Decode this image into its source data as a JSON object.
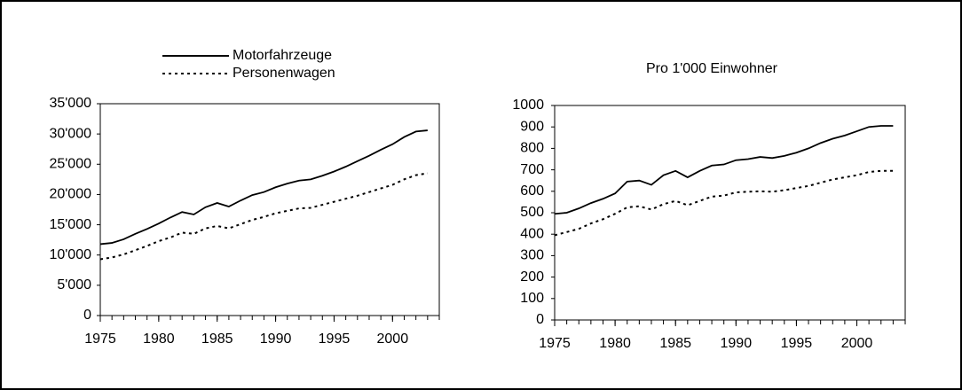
{
  "chart_data": [
    {
      "type": "line",
      "legend": true,
      "legend_position": "top",
      "x": [
        1975,
        1976,
        1977,
        1978,
        1979,
        1980,
        1981,
        1982,
        1983,
        1984,
        1985,
        1986,
        1987,
        1988,
        1989,
        1990,
        1991,
        1992,
        1993,
        1994,
        1995,
        1996,
        1997,
        1998,
        1999,
        2000,
        2001,
        2002,
        2003
      ],
      "xlim": [
        1975,
        2004
      ],
      "xticks": [
        1975,
        1980,
        1985,
        1990,
        1995,
        2000
      ],
      "ylim": [
        0,
        35000
      ],
      "yticks": [
        0,
        {
          "value": 5000,
          "label": "5'000"
        },
        {
          "value": 10000,
          "label": "10'000"
        },
        {
          "value": 15000,
          "label": "15'000"
        },
        {
          "value": 20000,
          "label": "20'000"
        },
        {
          "value": 25000,
          "label": "25'000"
        },
        {
          "value": 30000,
          "label": "30'000"
        },
        {
          "value": 35000,
          "label": "35'000"
        }
      ],
      "series": [
        {
          "name": "Motorfahrzeuge",
          "color": "#000000",
          "dash": "solid",
          "values": [
            11800,
            12000,
            12600,
            13500,
            14300,
            15200,
            16200,
            17100,
            16700,
            17900,
            18600,
            18000,
            19000,
            19900,
            20400,
            21200,
            21800,
            22300,
            22500,
            23100,
            23800,
            24600,
            25500,
            26400,
            27400,
            28300,
            29500,
            30400,
            30600
          ]
        },
        {
          "name": "Personenwagen",
          "color": "#000000",
          "dash": "dotted",
          "values": [
            9300,
            9600,
            10100,
            10800,
            11500,
            12300,
            12900,
            13700,
            13500,
            14400,
            14800,
            14400,
            15100,
            15800,
            16300,
            16900,
            17300,
            17700,
            17800,
            18300,
            18800,
            19300,
            19800,
            20400,
            21000,
            21600,
            22500,
            23200,
            23500
          ]
        }
      ]
    },
    {
      "type": "line",
      "title": "Pro 1'000 Einwohner",
      "legend": false,
      "x": [
        1975,
        1976,
        1977,
        1978,
        1979,
        1980,
        1981,
        1982,
        1983,
        1984,
        1985,
        1986,
        1987,
        1988,
        1989,
        1990,
        1991,
        1992,
        1993,
        1994,
        1995,
        1996,
        1997,
        1998,
        1999,
        2000,
        2001,
        2002,
        2003
      ],
      "xlim": [
        1975,
        2004
      ],
      "xticks": [
        1975,
        1980,
        1985,
        1990,
        1995,
        2000
      ],
      "ylim": [
        0,
        1000
      ],
      "yticks": [
        0,
        100,
        200,
        300,
        400,
        500,
        600,
        700,
        800,
        900,
        1000
      ],
      "series": [
        {
          "color": "#000000",
          "dash": "solid",
          "values": [
            495,
            500,
            520,
            545,
            565,
            590,
            645,
            650,
            630,
            675,
            695,
            665,
            695,
            720,
            725,
            745,
            750,
            760,
            755,
            765,
            780,
            800,
            825,
            845,
            860,
            880,
            900,
            905,
            905
          ]
        },
        {
          "color": "#000000",
          "dash": "dotted",
          "values": [
            395,
            410,
            425,
            450,
            470,
            495,
            525,
            530,
            515,
            540,
            555,
            535,
            555,
            575,
            580,
            595,
            598,
            600,
            598,
            605,
            615,
            625,
            640,
            655,
            665,
            675,
            690,
            695,
            695
          ]
        }
      ]
    }
  ]
}
